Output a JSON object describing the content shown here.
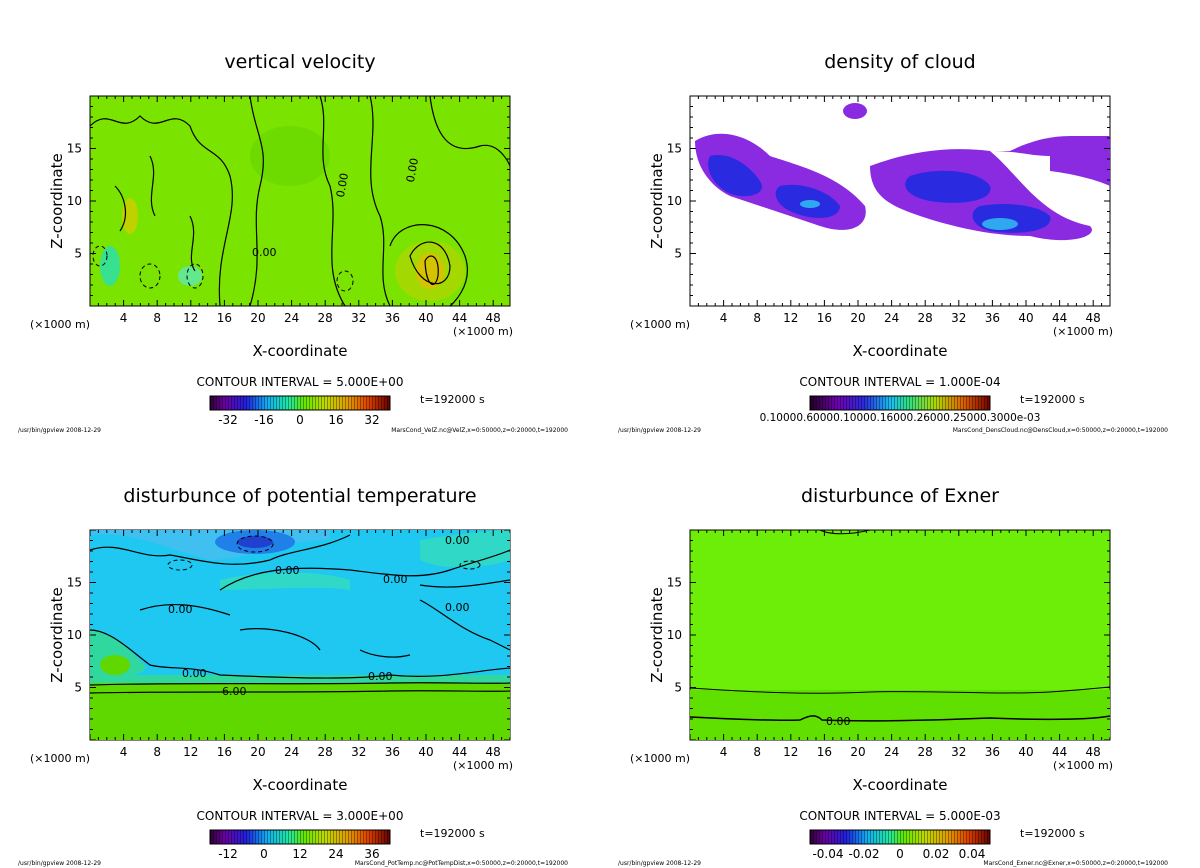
{
  "chart_data": [
    {
      "type": "heatmap",
      "title": "vertical velocity",
      "xlabel": "X-coordinate",
      "ylabel": "Z-coordinate",
      "x_unit": "(×1000 m)",
      "y_unit": "(×1000 m)",
      "xlim": [
        0,
        50
      ],
      "ylim": [
        0,
        20
      ],
      "x_ticks": [
        4,
        8,
        12,
        16,
        20,
        24,
        28,
        32,
        36,
        40,
        44,
        48
      ],
      "y_ticks": [
        5,
        10,
        15
      ],
      "contour_labels": [
        "0.00",
        "0.00",
        "0.00"
      ],
      "contour_interval": "CONTOUR INTERVAL = 5.000E+00",
      "time": "t=192000 s",
      "colorbar_ticks": [
        "-32",
        "-16",
        "0",
        "16",
        "32"
      ],
      "colorbar_range": [
        -40,
        40
      ],
      "footer_left": "/usr/bin/gpview  2008-12-29",
      "footer_right": "MarsCond_VelZ.nc@VelZ,x=0:50000,z=0:20000,t=192000",
      "colors": {
        "background": "#7be300"
      }
    },
    {
      "type": "heatmap",
      "title": "density of cloud",
      "xlabel": "X-coordinate",
      "ylabel": "Z-coordinate",
      "x_unit": "(×1000 m)",
      "y_unit": "(×1000 m)",
      "xlim": [
        0,
        50
      ],
      "ylim": [
        0,
        20
      ],
      "x_ticks": [
        4,
        8,
        12,
        16,
        20,
        24,
        28,
        32,
        36,
        40,
        44,
        48
      ],
      "y_ticks": [
        5,
        10,
        15
      ],
      "contour_interval": "CONTOUR INTERVAL = 1.000E-04",
      "time": "t=192000 s",
      "colorbar_ticks_text": "0.10000.60000.10000.16000.26000.25000.3000e-03",
      "footer_left": "/usr/bin/gpview  2008-12-29",
      "footer_right": "MarsCond_DensCloud.nc@DensCloud,x=0:50000,z=0:20000,t=192000",
      "colors": {
        "background": "#ffffff",
        "cloud_low": "#8a2be2",
        "cloud_high": "#1e1ee8"
      }
    },
    {
      "type": "heatmap",
      "title": "disturbunce of potential temperature",
      "xlabel": "X-coordinate",
      "ylabel": "Z-coordinate",
      "x_unit": "(×1000 m)",
      "y_unit": "(×1000 m)",
      "xlim": [
        0,
        50
      ],
      "ylim": [
        0,
        20
      ],
      "x_ticks": [
        4,
        8,
        12,
        16,
        20,
        24,
        28,
        32,
        36,
        40,
        44,
        48
      ],
      "y_ticks": [
        5,
        10,
        15
      ],
      "contour_labels": [
        "0.00",
        "0.00",
        "0.00",
        "0.00",
        "0.00",
        "0.00",
        "0.00",
        "6.00"
      ],
      "contour_interval": "CONTOUR INTERVAL = 3.000E+00",
      "time": "t=192000 s",
      "colorbar_ticks": [
        "-12",
        "0",
        "12",
        "24",
        "36"
      ],
      "colorbar_range": [
        -18,
        42
      ],
      "footer_left": "/usr/bin/gpview  2008-12-29",
      "footer_right": "MarsCond_PotTemp.nc@PotTempDist,x=0:50000,z=0:20000,t=192000",
      "colors": {
        "upper": "#1ec8f0",
        "lower": "#5fd800"
      }
    },
    {
      "type": "heatmap",
      "title": "disturbunce of Exner",
      "xlabel": "X-coordinate",
      "ylabel": "Z-coordinate",
      "x_unit": "(×1000 m)",
      "y_unit": "(×1000 m)",
      "xlim": [
        0,
        50
      ],
      "ylim": [
        0,
        20
      ],
      "x_ticks": [
        4,
        8,
        12,
        16,
        20,
        24,
        28,
        32,
        36,
        40,
        44,
        48
      ],
      "y_ticks": [
        5,
        10,
        15
      ],
      "contour_labels": [
        "0.00"
      ],
      "contour_interval": "CONTOUR INTERVAL = 5.000E-03",
      "time": "t=192000 s",
      "colorbar_ticks": [
        "-0.04",
        "-0.02",
        "0",
        "0.02",
        "0.04"
      ],
      "colorbar_range": [
        -0.05,
        0.05
      ],
      "footer_left": "/usr/bin/gpview  2008-12-29",
      "footer_right": "MarsCond_Exner.nc@Exner,x=0:50000,z=0:20000,t=192000",
      "colors": {
        "background": "#6cee08"
      }
    }
  ]
}
